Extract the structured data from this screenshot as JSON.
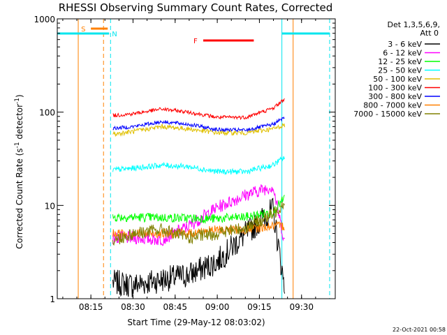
{
  "chart_data": {
    "type": "line",
    "title": "RHESSI Observing Summary Count Rates, Corrected",
    "xlabel": "Start Time (29-May-12 08:03:02)",
    "ylabel": "Corrected Count Rate (s-1 detector-1)",
    "ylabel_main": "Corrected Count Rate (s",
    "ylabel_sup1": "-1",
    "ylabel_mid": " detector",
    "ylabel_sup2": "-1",
    "ylabel_end": ")",
    "y_scale": "log",
    "ylim": [
      1,
      1000
    ],
    "xlim": [
      "08:03:02",
      "09:42:00"
    ],
    "x_ticks": [
      "08:15",
      "08:30",
      "08:45",
      "09:00",
      "09:15",
      "09:30"
    ],
    "y_ticks": [
      "1",
      "10",
      "100",
      "1000"
    ],
    "legend_position": "right",
    "legend_header": [
      "Det 1,3,5,6,9,",
      "Att 0"
    ],
    "footer_date": "22-Oct-2021 00:58",
    "markers": [
      {
        "label": "S",
        "color": "#ff8000",
        "start": "08:15:00",
        "end": "08:21:00"
      },
      {
        "label": "N",
        "color": "#00e5ee",
        "start": "08:03:00",
        "end": "08:21:30"
      },
      {
        "label": "F",
        "color": "#ff0000",
        "start": "08:55:00",
        "end": "09:13:00"
      },
      {
        "label": "N",
        "color": "#00e5ee",
        "start": "09:23:00",
        "end": "09:40:00"
      }
    ],
    "vertical_lines": [
      {
        "time": "08:10:30",
        "color": "#ff8000",
        "style": "solid"
      },
      {
        "time": "08:19:30",
        "color": "#ff8000",
        "style": "dashed"
      },
      {
        "time": "08:22:00",
        "color": "#00e5ee",
        "style": "dashed"
      },
      {
        "time": "09:23:00",
        "color": "#00e5ee",
        "style": "solid"
      },
      {
        "time": "09:27:00",
        "color": "#ff8000",
        "style": "solid"
      },
      {
        "time": "09:40:00",
        "color": "#00e5ee",
        "style": "dashed"
      }
    ],
    "series": [
      {
        "name": "3 - 6 keV",
        "color": "#000000",
        "values": [
          [
            8.38,
            1.5
          ],
          [
            8.5,
            1.4
          ],
          [
            8.67,
            1.6
          ],
          [
            8.83,
            1.8
          ],
          [
            9.0,
            2.5
          ],
          [
            9.17,
            5
          ],
          [
            9.33,
            9
          ],
          [
            9.4,
            1.3
          ]
        ]
      },
      {
        "name": "6 - 12 keV",
        "color": "#ff00ff",
        "values": [
          [
            8.38,
            4.5
          ],
          [
            8.5,
            4.5
          ],
          [
            8.67,
            4.3
          ],
          [
            8.83,
            6
          ],
          [
            9.0,
            9.5
          ],
          [
            9.17,
            13
          ],
          [
            9.33,
            16
          ],
          [
            9.4,
            4
          ]
        ]
      },
      {
        "name": "12 - 25 keV",
        "color": "#00ff00",
        "values": [
          [
            8.38,
            7.5
          ],
          [
            8.5,
            7.5
          ],
          [
            8.67,
            7.4
          ],
          [
            8.83,
            7.3
          ],
          [
            9.0,
            7.2
          ],
          [
            9.17,
            7.5
          ],
          [
            9.33,
            8.5
          ],
          [
            9.4,
            12
          ]
        ]
      },
      {
        "name": "25 - 50 keV",
        "color": "#00ffff",
        "values": [
          [
            8.38,
            24
          ],
          [
            8.5,
            25
          ],
          [
            8.67,
            27
          ],
          [
            8.83,
            26
          ],
          [
            9.0,
            23
          ],
          [
            9.17,
            23
          ],
          [
            9.33,
            27
          ],
          [
            9.4,
            33
          ]
        ]
      },
      {
        "name": "50 - 100 keV",
        "color": "#e0c000",
        "values": [
          [
            8.38,
            58
          ],
          [
            8.5,
            62
          ],
          [
            8.67,
            70
          ],
          [
            8.83,
            66
          ],
          [
            9.0,
            60
          ],
          [
            9.17,
            60
          ],
          [
            9.33,
            66
          ],
          [
            9.4,
            73
          ]
        ]
      },
      {
        "name": "100 - 300 keV",
        "color": "#ff0000",
        "values": [
          [
            8.38,
            92
          ],
          [
            8.5,
            96
          ],
          [
            8.67,
            108
          ],
          [
            8.83,
            100
          ],
          [
            9.0,
            88
          ],
          [
            9.17,
            88
          ],
          [
            9.33,
            110
          ],
          [
            9.4,
            138
          ]
        ]
      },
      {
        "name": "300 - 800 keV",
        "color": "#0000ff",
        "values": [
          [
            8.38,
            67
          ],
          [
            8.5,
            70
          ],
          [
            8.67,
            79
          ],
          [
            8.83,
            74
          ],
          [
            9.0,
            65
          ],
          [
            9.17,
            64
          ],
          [
            9.33,
            74
          ],
          [
            9.4,
            88
          ]
        ]
      },
      {
        "name": "800 - 7000 keV",
        "color": "#ff8000",
        "values": [
          [
            8.38,
            5
          ],
          [
            8.5,
            5
          ],
          [
            8.67,
            5
          ],
          [
            8.83,
            5
          ],
          [
            9.0,
            5.5
          ],
          [
            9.17,
            5.5
          ],
          [
            9.33,
            6
          ],
          [
            9.4,
            6
          ]
        ]
      },
      {
        "name": "7000 - 15000 keV",
        "color": "#808000",
        "values": [
          [
            8.38,
            4.2
          ],
          [
            8.5,
            5
          ],
          [
            8.67,
            5.5
          ],
          [
            8.83,
            4.5
          ],
          [
            9.0,
            5
          ],
          [
            9.17,
            5.8
          ],
          [
            9.33,
            8
          ],
          [
            9.4,
            11
          ]
        ]
      }
    ]
  }
}
